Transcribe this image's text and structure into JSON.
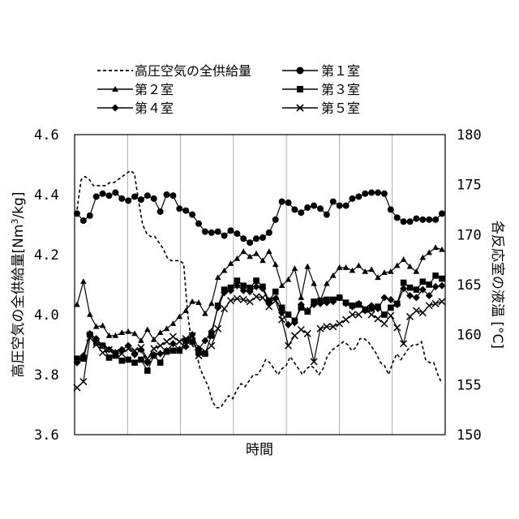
{
  "chart_data": {
    "type": "line",
    "title": "",
    "xlabel": "時間",
    "ylabel_left": "高圧空気の全供給量[Nm3/kg]",
    "ylabel_left_parts": {
      "main": "高圧空気の全供給量[Nm",
      "sup": "3",
      "rest": "/kg]"
    },
    "ylabel_right": "各反応室の液温 [°C]",
    "ylim_left": [
      3.6,
      4.6
    ],
    "ylim_right": [
      150,
      180
    ],
    "yticks_left": [
      "3.6",
      "3.8",
      "4.0",
      "4.2",
      "4.4",
      "4.6"
    ],
    "yticks_right": [
      "150",
      "155",
      "160",
      "165",
      "170",
      "175",
      "180"
    ],
    "x_ticks_visible": false,
    "grid": "vertical",
    "legend_position": "top",
    "series": [
      {
        "name": "高圧空気の全供給量",
        "axis": "left",
        "style": "dashed",
        "marker": "none",
        "values": [
          4.35,
          4.45,
          4.46,
          4.45,
          4.43,
          4.43,
          4.43,
          4.43,
          4.44,
          4.44,
          4.45,
          4.46,
          4.47,
          4.48,
          4.47,
          4.38,
          4.3,
          4.27,
          4.26,
          4.26,
          4.24,
          4.22,
          4.19,
          4.18,
          4.18,
          4.18,
          4.17,
          4.0,
          3.9,
          3.88,
          3.82,
          3.79,
          3.76,
          3.71,
          3.69,
          3.69,
          3.71,
          3.73,
          3.72,
          3.75,
          3.77,
          3.76,
          3.78,
          3.8,
          3.8,
          3.82,
          3.85,
          3.84,
          3.82,
          3.8,
          3.82,
          3.83,
          3.86,
          3.84,
          3.82,
          3.8,
          3.82,
          3.83,
          3.82,
          3.8,
          3.82,
          3.86,
          3.88,
          3.89,
          3.9,
          3.91,
          3.9,
          3.88,
          3.89,
          3.92,
          3.92,
          3.91,
          3.89,
          3.87,
          3.84,
          3.83,
          3.8,
          3.84,
          3.87,
          3.85,
          3.87,
          3.89,
          3.9,
          3.9,
          3.91,
          3.85,
          3.84,
          3.84,
          3.8,
          3.77
        ]
      },
      {
        "name": "第１室",
        "axis": "right",
        "style": "solid",
        "marker": "circle",
        "values": [
          172.1,
          171.4,
          171.9,
          173.8,
          174.1,
          173.9,
          174.2,
          173.6,
          173.4,
          173.8,
          173.5,
          173.9,
          173.6,
          172.3,
          174.0,
          173.9,
          172.6,
          172.4,
          172.0,
          171.1,
          170.3,
          170.2,
          170.3,
          169.9,
          170.4,
          170.1,
          169.6,
          169.2,
          169.6,
          169.7,
          170.2,
          171.5,
          173.3,
          173.2,
          172.5,
          172.2,
          172.7,
          172.9,
          172.6,
          172.0,
          173.3,
          172.9,
          172.9,
          173.6,
          173.8,
          174.1,
          174.2,
          174.2,
          174.1,
          172.5,
          171.7,
          171.3,
          171.3,
          171.6,
          171.5,
          171.5,
          171.5,
          172.1
        ]
      },
      {
        "name": "第２室",
        "axis": "right",
        "style": "solid",
        "marker": "triangle",
        "values": [
          163.0,
          165.3,
          162.0,
          160.8,
          160.9,
          159.9,
          159.9,
          160.2,
          160.3,
          160.1,
          159.4,
          160.5,
          159.5,
          160.2,
          160.6,
          161.1,
          161.8,
          162.4,
          163.3,
          163.2,
          162.1,
          163.1,
          165.7,
          166.4,
          167.1,
          167.6,
          168.3,
          167.8,
          168.1,
          167.4,
          168.3,
          167.0,
          164.9,
          165.5,
          166.6,
          163.7,
          166.8,
          165.1,
          163.4,
          165.1,
          165.9,
          166.7,
          166.7,
          166.4,
          166.9,
          166.3,
          166.5,
          165.7,
          166.2,
          166.3,
          166.9,
          167.5,
          166.8,
          166.3,
          167.7,
          168.2,
          168.7,
          168.5
        ]
      },
      {
        "name": "第３室",
        "axis": "right",
        "style": "solid",
        "marker": "square",
        "values": [
          157.6,
          157.6,
          160.0,
          159.2,
          158.9,
          157.7,
          157.9,
          157.4,
          157.5,
          157.2,
          157.5,
          156.4,
          157.9,
          157.2,
          158.3,
          158.4,
          158.4,
          159.4,
          159.3,
          158.2,
          158.1,
          159.9,
          162.9,
          164.5,
          164.7,
          165.4,
          164.9,
          164.7,
          165.4,
          164.8,
          163.4,
          164.3,
          162.7,
          162.0,
          161.4,
          162.7,
          162.3,
          163.3,
          163.4,
          163.5,
          163.5,
          163.7,
          163.2,
          162.9,
          163.0,
          162.5,
          162.6,
          162.8,
          162.0,
          162.7,
          163.1,
          165.2,
          164.7,
          164.5,
          165.3,
          165.0,
          165.9,
          165.6
        ]
      },
      {
        "name": "第４室",
        "axis": "right",
        "style": "solid",
        "marker": "diamond",
        "values": [
          157.2,
          157.9,
          160.1,
          159.6,
          158.9,
          158.5,
          158.2,
          158.5,
          158.9,
          158.0,
          158.5,
          157.2,
          158.0,
          158.1,
          158.4,
          159.1,
          158.5,
          158.8,
          160.0,
          158.6,
          159.4,
          160.3,
          162.7,
          164.2,
          164.4,
          164.9,
          164.4,
          164.3,
          164.8,
          164.6,
          163.2,
          163.6,
          162.2,
          161.0,
          161.2,
          163.0,
          162.4,
          163.0,
          163.1,
          163.2,
          163.3,
          163.7,
          163.1,
          162.8,
          163.1,
          162.4,
          162.9,
          162.6,
          163.7,
          163.5,
          163.0,
          164.6,
          163.9,
          163.7,
          164.5,
          163.9,
          164.8,
          164.9
        ]
      },
      {
        "name": "第５室",
        "axis": "right",
        "style": "solid",
        "marker": "x",
        "values": [
          154.7,
          155.3,
          159.7,
          159.0,
          158.2,
          158.5,
          158.2,
          158.1,
          158.6,
          158.4,
          158.7,
          157.6,
          158.6,
          158.9,
          159.3,
          159.8,
          159.3,
          159.6,
          159.9,
          157.9,
          158.3,
          158.9,
          160.6,
          162.6,
          163.4,
          163.6,
          163.5,
          163.3,
          163.8,
          163.7,
          162.8,
          163.4,
          161.5,
          158.9,
          159.9,
          160.5,
          160.1,
          157.3,
          160.6,
          160.8,
          160.8,
          161.1,
          161.5,
          162.0,
          162.0,
          162.6,
          162.0,
          161.6,
          161.1,
          161.9,
          160.7,
          159.1,
          161.8,
          162.4,
          162.2,
          162.9,
          163.1,
          163.3
        ]
      }
    ]
  }
}
